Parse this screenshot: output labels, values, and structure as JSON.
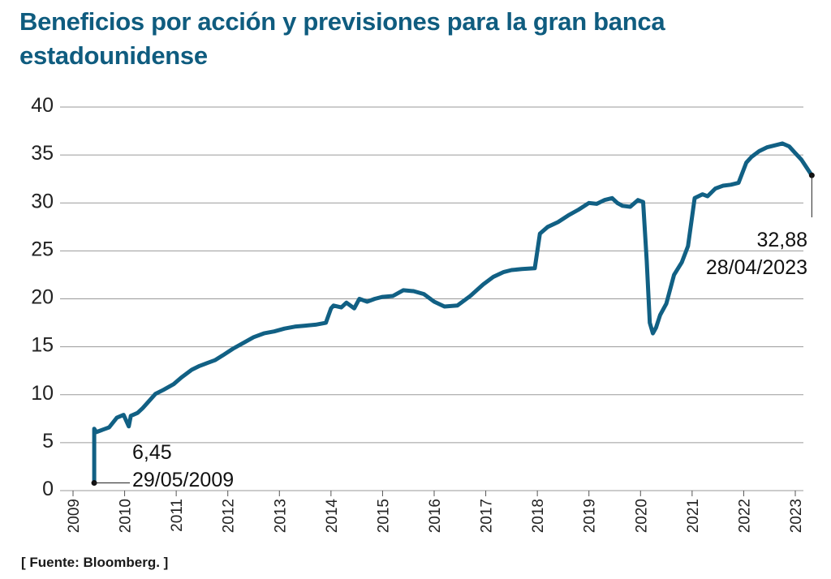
{
  "title": "Beneficios por acción y previsiones para la gran banca estadounidense",
  "source": "[ Fuente: Bloomberg. ]",
  "colors": {
    "title": "#0f5c7f",
    "line": "#116084",
    "grid": "#9a9a9a"
  },
  "chart_data": {
    "type": "line",
    "title": "Beneficios por acción y previsiones para la gran banca estadounidense",
    "xlabel": "",
    "ylabel": "",
    "ylim": [
      0,
      40
    ],
    "yticks": [
      "0",
      "5",
      "10",
      "15",
      "20",
      "25",
      "30",
      "35",
      "40"
    ],
    "xlim": [
      2009,
      2023.5
    ],
    "xticks": [
      "2009",
      "2010",
      "2011",
      "2012",
      "2013",
      "2014",
      "2015",
      "2016",
      "2017",
      "2018",
      "2019",
      "2020",
      "2021",
      "2022",
      "2023"
    ],
    "grid": true,
    "series": [
      {
        "x": [
          2009.41,
          2009.45,
          2009.55,
          2009.7,
          2009.85,
          2009.98,
          2010.08,
          2010.12,
          2010.25,
          2010.35,
          2010.45,
          2010.6,
          2010.75,
          2010.95,
          2011.1,
          2011.3,
          2011.45,
          2011.6,
          2011.75,
          2011.9,
          2012.1,
          2012.3,
          2012.5,
          2012.7,
          2012.9,
          2013.1,
          2013.3,
          2013.5,
          2013.7,
          2013.9,
          2014.0,
          2014.05,
          2014.2,
          2014.3,
          2014.45,
          2014.55,
          2014.7,
          2014.85,
          2015.0,
          2015.2,
          2015.4,
          2015.6,
          2015.8,
          2016.0,
          2016.2,
          2016.45,
          2016.7,
          2016.95,
          2017.15,
          2017.35,
          2017.5,
          2017.7,
          2017.95,
          2018.05,
          2018.2,
          2018.4,
          2018.6,
          2018.8,
          2019.0,
          2019.15,
          2019.3,
          2019.45,
          2019.55,
          2019.65,
          2019.8,
          2019.95,
          2020.05,
          2020.12,
          2020.18,
          2020.24,
          2020.3,
          2020.38,
          2020.5,
          2020.65,
          2020.8,
          2020.92,
          2021.05,
          2021.2,
          2021.3,
          2021.45,
          2021.6,
          2021.75,
          2021.9,
          2022.05,
          2022.15,
          2022.3,
          2022.45,
          2022.6,
          2022.75,
          2022.88,
          2023.0,
          2023.12,
          2023.32
        ],
        "values": [
          6.45,
          6.1,
          6.3,
          6.6,
          7.6,
          7.9,
          6.7,
          7.8,
          8.1,
          8.6,
          9.2,
          10.1,
          10.5,
          11.1,
          11.8,
          12.6,
          13.0,
          13.3,
          13.6,
          14.1,
          14.8,
          15.4,
          16.0,
          16.4,
          16.6,
          16.9,
          17.1,
          17.2,
          17.3,
          17.5,
          19.0,
          19.3,
          19.1,
          19.6,
          19.0,
          20.0,
          19.7,
          20.0,
          20.2,
          20.3,
          20.9,
          20.8,
          20.5,
          19.7,
          19.2,
          19.3,
          20.3,
          21.5,
          22.3,
          22.8,
          23.0,
          23.1,
          23.2,
          26.8,
          27.5,
          28.0,
          28.7,
          29.3,
          30.0,
          29.9,
          30.3,
          30.5,
          30.0,
          29.7,
          29.6,
          30.3,
          30.1,
          24.0,
          17.5,
          16.4,
          17.0,
          18.3,
          19.5,
          22.5,
          23.8,
          25.5,
          30.5,
          30.9,
          30.7,
          31.5,
          31.8,
          31.9,
          32.1,
          34.2,
          34.8,
          35.4,
          35.8,
          36.0,
          36.2,
          35.9,
          35.2,
          34.5,
          32.88
        ]
      }
    ],
    "annotations": [
      {
        "value": "6,45",
        "date": "29/05/2009",
        "x": 2009.41,
        "y": 6.45
      },
      {
        "value": "32,88",
        "date": "28/04/2023",
        "x": 2023.32,
        "y": 32.88
      }
    ]
  }
}
